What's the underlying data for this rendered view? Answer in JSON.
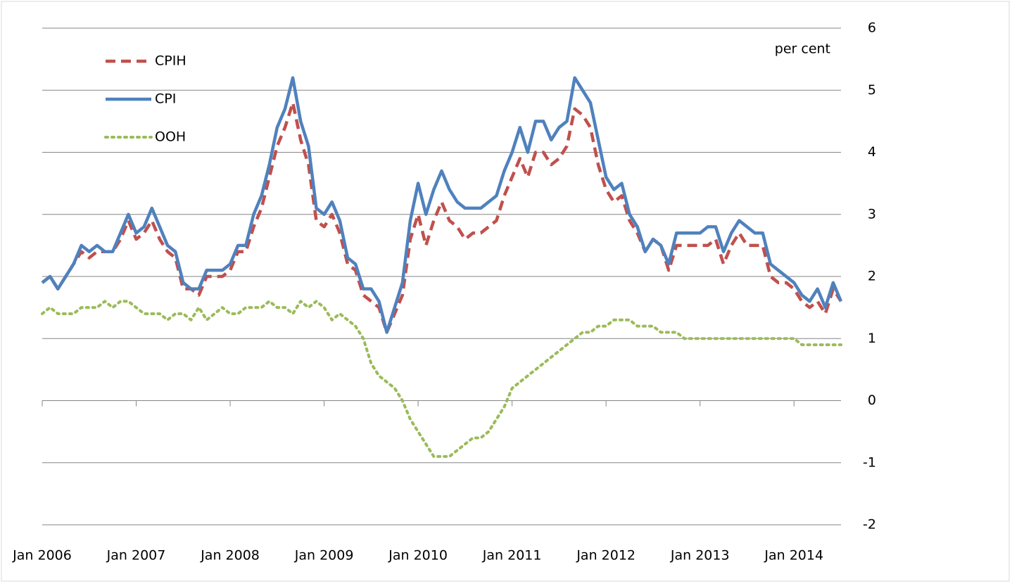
{
  "chart_data": {
    "type": "line",
    "annotation": "per cent",
    "categories": [
      "Jan 2006",
      null,
      null,
      null,
      null,
      null,
      null,
      null,
      null,
      null,
      null,
      null,
      "Jan 2007",
      null,
      null,
      null,
      null,
      null,
      null,
      null,
      null,
      null,
      null,
      null,
      "Jan 2008",
      null,
      null,
      null,
      null,
      null,
      null,
      null,
      null,
      null,
      null,
      null,
      "Jan 2009",
      null,
      null,
      null,
      null,
      null,
      null,
      null,
      null,
      null,
      null,
      null,
      "Jan 2010",
      null,
      null,
      null,
      null,
      null,
      null,
      null,
      null,
      null,
      null,
      null,
      "Jan 2011",
      null,
      null,
      null,
      null,
      null,
      null,
      null,
      null,
      null,
      null,
      null,
      "Jan 2012",
      null,
      null,
      null,
      null,
      null,
      null,
      null,
      null,
      null,
      null,
      null,
      "Jan 2013",
      null,
      null,
      null,
      null,
      null,
      null,
      null,
      null,
      null,
      null,
      null,
      "Jan 2014",
      null,
      null,
      null,
      null,
      null,
      null
    ],
    "series": [
      {
        "name": "CPIH",
        "color": "#c0504d",
        "dash": "dashed",
        "values": [
          1.9,
          2.0,
          1.8,
          2.0,
          2.2,
          2.4,
          2.3,
          2.4,
          2.4,
          2.4,
          2.6,
          2.9,
          2.6,
          2.7,
          2.9,
          2.6,
          2.4,
          2.3,
          1.8,
          1.8,
          1.7,
          2.0,
          2.0,
          2.0,
          2.1,
          2.4,
          2.4,
          2.8,
          3.1,
          3.6,
          4.1,
          4.4,
          4.8,
          4.2,
          3.8,
          2.9,
          2.8,
          3.0,
          2.7,
          2.2,
          2.1,
          1.7,
          1.6,
          1.5,
          1.1,
          1.4,
          1.7,
          2.6,
          3.0,
          2.5,
          2.9,
          3.2,
          2.9,
          2.8,
          2.6,
          2.7,
          2.7,
          2.8,
          2.9,
          3.3,
          3.6,
          3.9,
          3.6,
          4.0,
          4.0,
          3.8,
          3.9,
          4.1,
          4.7,
          4.6,
          4.4,
          3.8,
          3.4,
          3.2,
          3.3,
          2.9,
          2.7,
          2.4,
          2.6,
          2.5,
          2.1,
          2.5,
          2.5,
          2.5,
          2.5,
          2.5,
          2.6,
          2.2,
          2.5,
          2.7,
          2.5,
          2.5,
          2.5,
          2.0,
          1.9,
          1.9,
          1.8,
          1.6,
          1.5,
          1.6,
          1.4,
          1.8,
          1.6
        ]
      },
      {
        "name": "CPI",
        "color": "#4f81bd",
        "dash": "solid",
        "values": [
          1.9,
          2.0,
          1.8,
          2.0,
          2.2,
          2.5,
          2.4,
          2.5,
          2.4,
          2.4,
          2.7,
          3.0,
          2.7,
          2.8,
          3.1,
          2.8,
          2.5,
          2.4,
          1.9,
          1.8,
          1.8,
          2.1,
          2.1,
          2.1,
          2.2,
          2.5,
          2.5,
          3.0,
          3.3,
          3.8,
          4.4,
          4.7,
          5.2,
          4.5,
          4.1,
          3.1,
          3.0,
          3.2,
          2.9,
          2.3,
          2.2,
          1.8,
          1.8,
          1.6,
          1.1,
          1.5,
          1.9,
          2.9,
          3.5,
          3.0,
          3.4,
          3.7,
          3.4,
          3.2,
          3.1,
          3.1,
          3.1,
          3.2,
          3.3,
          3.7,
          4.0,
          4.4,
          4.0,
          4.5,
          4.5,
          4.2,
          4.4,
          4.5,
          5.2,
          5.0,
          4.8,
          4.2,
          3.6,
          3.4,
          3.5,
          3.0,
          2.8,
          2.4,
          2.6,
          2.5,
          2.2,
          2.7,
          2.7,
          2.7,
          2.7,
          2.8,
          2.8,
          2.4,
          2.7,
          2.9,
          2.8,
          2.7,
          2.7,
          2.2,
          2.1,
          2.0,
          1.9,
          1.7,
          1.6,
          1.8,
          1.5,
          1.9,
          1.6
        ]
      },
      {
        "name": "OOH",
        "color": "#9bbb59",
        "dash": "dotted",
        "values": [
          1.4,
          1.5,
          1.4,
          1.4,
          1.4,
          1.5,
          1.5,
          1.5,
          1.6,
          1.5,
          1.6,
          1.6,
          1.5,
          1.4,
          1.4,
          1.4,
          1.3,
          1.4,
          1.4,
          1.3,
          1.5,
          1.3,
          1.4,
          1.5,
          1.4,
          1.4,
          1.5,
          1.5,
          1.5,
          1.6,
          1.5,
          1.5,
          1.4,
          1.6,
          1.5,
          1.6,
          1.5,
          1.3,
          1.4,
          1.3,
          1.2,
          1.0,
          0.6,
          0.4,
          0.3,
          0.2,
          0.0,
          -0.3,
          -0.5,
          -0.7,
          -0.9,
          -0.9,
          -0.9,
          -0.8,
          -0.7,
          -0.6,
          -0.6,
          -0.5,
          -0.3,
          -0.1,
          0.2,
          0.3,
          0.4,
          0.5,
          0.6,
          0.7,
          0.8,
          0.9,
          1.0,
          1.1,
          1.1,
          1.2,
          1.2,
          1.3,
          1.3,
          1.3,
          1.2,
          1.2,
          1.2,
          1.1,
          1.1,
          1.1,
          1.0,
          1.0,
          1.0,
          1.0,
          1.0,
          1.0,
          1.0,
          1.0,
          1.0,
          1.0,
          1.0,
          1.0,
          1.0,
          1.0,
          1.0,
          0.9,
          0.9,
          0.9,
          0.9,
          0.9,
          0.9
        ]
      }
    ],
    "ylim": [
      -2,
      6
    ],
    "yticks": [
      -2,
      -1,
      0,
      1,
      2,
      3,
      4,
      5,
      6
    ],
    "grid": true,
    "y_axis_side": "right",
    "legend": "upper left"
  }
}
